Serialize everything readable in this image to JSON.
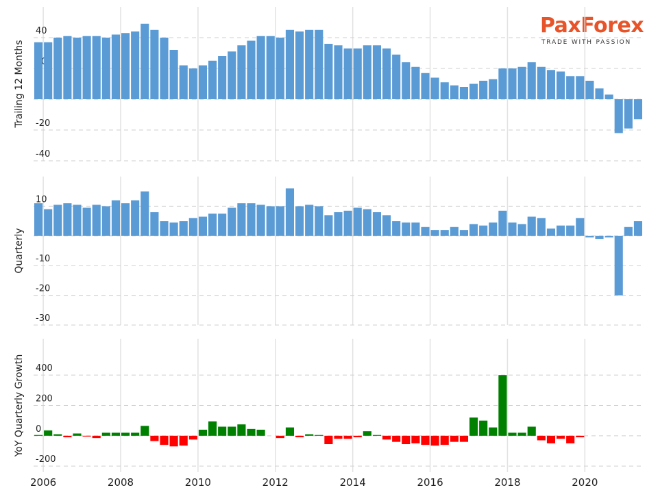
{
  "logo": {
    "brand": "PaxForex",
    "tagline": "TRADE WITH PASSION"
  },
  "chart_data": [
    {
      "type": "bar",
      "ylabel": "Trailing 12 Months",
      "color": "#5b9bd5",
      "grid": true,
      "xlim": [
        2005.75,
        2021.5
      ],
      "xticks": [
        2006,
        2008,
        2010,
        2012,
        2014,
        2016,
        2018,
        2020
      ],
      "ylim": [
        -40,
        60
      ],
      "yticks": [
        -40,
        -20,
        0,
        20,
        40
      ],
      "x": [
        2005.875,
        2006.125,
        2006.375,
        2006.625,
        2006.875,
        2007.125,
        2007.375,
        2007.625,
        2007.875,
        2008.125,
        2008.375,
        2008.625,
        2008.875,
        2009.125,
        2009.375,
        2009.625,
        2009.875,
        2010.125,
        2010.375,
        2010.625,
        2010.875,
        2011.125,
        2011.375,
        2011.625,
        2011.875,
        2012.125,
        2012.375,
        2012.625,
        2012.875,
        2013.125,
        2013.375,
        2013.625,
        2013.875,
        2014.125,
        2014.375,
        2014.625,
        2014.875,
        2015.125,
        2015.375,
        2015.625,
        2015.875,
        2016.125,
        2016.375,
        2016.625,
        2016.875,
        2017.125,
        2017.375,
        2017.625,
        2017.875,
        2018.125,
        2018.375,
        2018.625,
        2018.875,
        2019.125,
        2019.375,
        2019.625,
        2019.875,
        2020.125,
        2020.375,
        2020.625,
        2020.875,
        2021.125,
        2021.375
      ],
      "values": [
        37,
        37,
        40,
        41,
        40,
        41,
        41,
        40,
        42,
        43,
        44,
        49,
        45,
        40,
        32,
        22,
        20,
        22,
        25,
        28,
        31,
        35,
        38,
        41,
        41,
        40,
        45,
        44,
        45,
        45,
        36,
        35,
        33,
        33,
        35,
        35,
        33,
        29,
        24,
        21,
        17,
        14,
        11,
        9,
        8,
        10,
        12,
        13,
        20,
        20,
        21,
        24,
        21,
        19,
        18,
        15,
        15,
        12,
        7,
        3,
        -22,
        -19,
        -13
      ]
    },
    {
      "type": "bar",
      "ylabel": "Quarterly",
      "color": "#5b9bd5",
      "grid": true,
      "xlim": [
        2005.75,
        2021.5
      ],
      "xticks": [
        2006,
        2008,
        2010,
        2012,
        2014,
        2016,
        2018,
        2020
      ],
      "ylim": [
        -30,
        20
      ],
      "yticks": [
        -30,
        -20,
        -10,
        0,
        10
      ],
      "x": [
        2005.875,
        2006.125,
        2006.375,
        2006.625,
        2006.875,
        2007.125,
        2007.375,
        2007.625,
        2007.875,
        2008.125,
        2008.375,
        2008.625,
        2008.875,
        2009.125,
        2009.375,
        2009.625,
        2009.875,
        2010.125,
        2010.375,
        2010.625,
        2010.875,
        2011.125,
        2011.375,
        2011.625,
        2011.875,
        2012.125,
        2012.375,
        2012.625,
        2012.875,
        2013.125,
        2013.375,
        2013.625,
        2013.875,
        2014.125,
        2014.375,
        2014.625,
        2014.875,
        2015.125,
        2015.375,
        2015.625,
        2015.875,
        2016.125,
        2016.375,
        2016.625,
        2016.875,
        2017.125,
        2017.375,
        2017.625,
        2017.875,
        2018.125,
        2018.375,
        2018.625,
        2018.875,
        2019.125,
        2019.375,
        2019.625,
        2019.875,
        2020.125,
        2020.375,
        2020.625,
        2020.875,
        2021.125,
        2021.375
      ],
      "values": [
        11,
        9,
        10.5,
        11,
        10.5,
        9.5,
        10.5,
        10,
        12,
        11,
        12,
        15,
        8,
        5,
        4.5,
        5,
        6,
        6.5,
        7.5,
        7.5,
        9.5,
        11,
        11,
        10.5,
        10,
        10,
        16,
        10,
        10.5,
        10,
        7,
        8,
        8.5,
        9.5,
        9,
        8,
        7,
        5,
        4.5,
        4.5,
        3,
        2,
        2,
        3,
        2,
        4,
        3.5,
        4.5,
        8.5,
        4.5,
        4,
        6.5,
        6,
        2.5,
        3.5,
        3.5,
        6,
        -0.5,
        -1,
        -0.5,
        -20,
        3,
        5
      ]
    },
    {
      "type": "bar",
      "ylabel": "YoY Quarterly Growth",
      "color": "#008000",
      "negative_color": "#ff0000",
      "grid": true,
      "xlim": [
        2005.75,
        2021.5
      ],
      "xticks": [
        2006,
        2008,
        2010,
        2012,
        2014,
        2016,
        2018,
        2020
      ],
      "ylim": [
        -240,
        640
      ],
      "yticks": [
        -200,
        0,
        200,
        400
      ],
      "x": [
        2005.875,
        2006.125,
        2006.375,
        2006.625,
        2006.875,
        2007.125,
        2007.375,
        2007.625,
        2007.875,
        2008.125,
        2008.375,
        2008.625,
        2008.875,
        2009.125,
        2009.375,
        2009.625,
        2009.875,
        2010.125,
        2010.375,
        2010.625,
        2010.875,
        2011.125,
        2011.375,
        2011.625,
        2011.875,
        2012.125,
        2012.375,
        2012.625,
        2012.875,
        2013.125,
        2013.375,
        2013.625,
        2013.875,
        2014.125,
        2014.375,
        2014.625,
        2014.875,
        2015.125,
        2015.375,
        2015.625,
        2015.875,
        2016.125,
        2016.375,
        2016.625,
        2016.875,
        2017.125,
        2017.375,
        2017.625,
        2017.875,
        2018.125,
        2018.375,
        2018.625,
        2018.875,
        2019.125,
        2019.375,
        2019.625,
        2019.875,
        2020.125,
        2020.375,
        2020.625,
        2020.875,
        2021.125,
        2021.375
      ],
      "values": [
        5,
        35,
        10,
        -10,
        15,
        -5,
        -15,
        20,
        20,
        20,
        20,
        65,
        -35,
        -60,
        -70,
        -65,
        -25,
        40,
        95,
        60,
        60,
        75,
        45,
        40,
        0,
        -15,
        55,
        -10,
        10,
        5,
        -55,
        -20,
        -20,
        -10,
        30,
        5,
        -25,
        -40,
        -55,
        -50,
        -60,
        -65,
        -60,
        -40,
        -40,
        120,
        100,
        55,
        400,
        20,
        20,
        60,
        -30,
        -50,
        -20,
        -50,
        -10,
        null,
        null,
        null,
        null,
        null,
        null
      ]
    }
  ]
}
